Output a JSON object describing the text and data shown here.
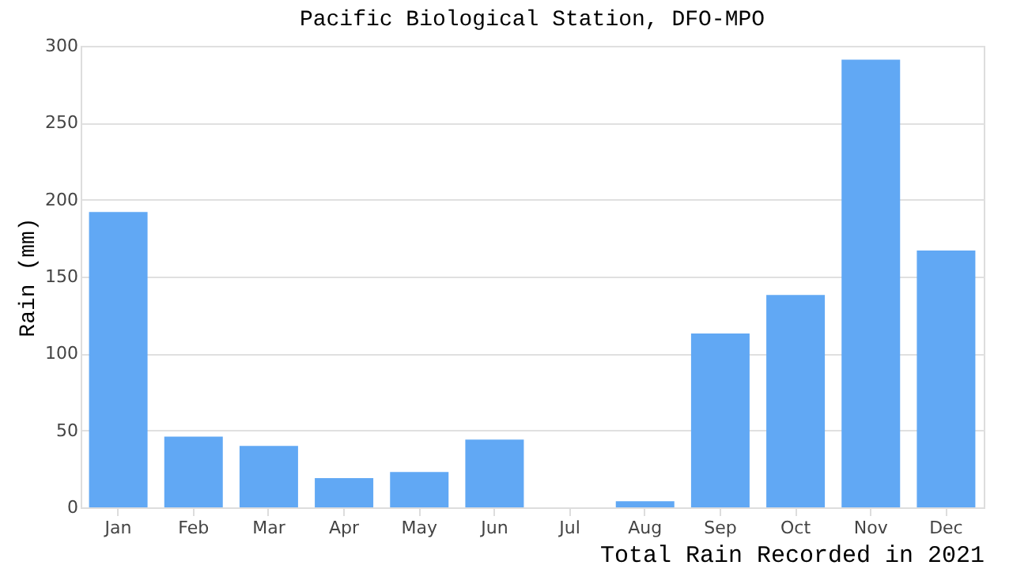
{
  "chart_data": {
    "type": "bar",
    "title": "Pacific Biological Station, DFO-MPO",
    "xlabel": "Total Rain Recorded in 2021",
    "ylabel": "Rain (mm)",
    "categories": [
      "Jan",
      "Feb",
      "Mar",
      "Apr",
      "May",
      "Jun",
      "Jul",
      "Aug",
      "Sep",
      "Oct",
      "Nov",
      "Dec"
    ],
    "values": [
      192,
      46,
      40,
      19,
      23,
      44,
      0,
      4,
      113,
      138,
      291,
      167
    ],
    "color": "#61a8f4",
    "ylim": [
      0,
      300
    ],
    "yticks": [
      0,
      50,
      100,
      150,
      200,
      250,
      300
    ],
    "grid": "y"
  }
}
